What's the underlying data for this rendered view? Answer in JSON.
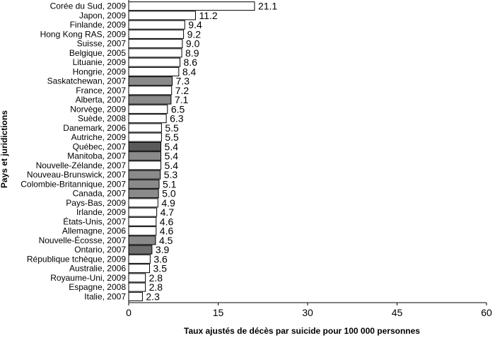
{
  "chart_data": {
    "type": "bar",
    "orientation": "horizontal",
    "xlabel": "Taux ajustés de décès par suicide pour 100 000 personnes",
    "ylabel": "Pays et juridictions",
    "xlim": [
      0,
      60
    ],
    "xticks": [
      "0",
      "15",
      "30",
      "45",
      "60"
    ],
    "grid": false,
    "legend": "none",
    "colors": {
      "country": "#ffffff",
      "province": "#8a8a8a",
      "quebec": "#5a5a5a",
      "ontario": "#6e6e6e",
      "outline": "#000000"
    },
    "categories": [
      "Corée du Sud, 2009",
      "Japon, 2009",
      "Finlande, 2009",
      "Hong Kong RAS, 2009",
      "Suisse, 2007",
      "Belgique, 2005",
      "Lituanie, 2009",
      "Hongrie, 2009",
      "Saskatchewan, 2007",
      "France, 2007",
      "Alberta, 2007",
      "Norvège, 2009",
      "Suède, 2008",
      "Danemark, 2006",
      "Autriche, 2009",
      "Québec, 2007",
      "Manitoba, 2007",
      "Nouvelle-Zélande, 2007",
      "Nouveau-Brunswick, 2007",
      "Colombie-Britannique, 2007",
      "Canada, 2007",
      "Pays-Bas, 2009",
      "Irlande, 2009",
      "États-Unis, 2007",
      "Allemagne, 2006",
      "Nouvelle-Écosse, 2007",
      "Ontario, 2007",
      "République tchèque, 2009",
      "Australie, 2006",
      "Royaume-Uni, 2009",
      "Espagne, 2008",
      "Italie, 2007"
    ],
    "values": [
      21.1,
      11.2,
      9.4,
      9.2,
      9.0,
      8.9,
      8.6,
      8.4,
      7.3,
      7.2,
      7.1,
      6.5,
      6.3,
      5.5,
      5.5,
      5.4,
      5.4,
      5.4,
      5.3,
      5.1,
      5.0,
      4.9,
      4.7,
      4.6,
      4.6,
      4.5,
      3.9,
      3.6,
      3.5,
      2.8,
      2.8,
      2.3
    ],
    "value_labels": [
      "21.1",
      "11.2",
      "9.4",
      "9.2",
      "9.0",
      "8.9",
      "8.6",
      "8.4",
      "7.3",
      "7.2",
      "7.1",
      "6.5",
      "6.3",
      "5.5",
      "5.5",
      "5.4",
      "5.4",
      "5.4",
      "5.3",
      "5.1",
      "5.0",
      "4.9",
      "4.7",
      "4.6",
      "4.6",
      "4.5",
      "3.9",
      "3.6",
      "3.5",
      "2.8",
      "2.8",
      "2.3"
    ],
    "bar_fill_keys": [
      "country",
      "country",
      "country",
      "country",
      "country",
      "country",
      "country",
      "country",
      "province",
      "country",
      "province",
      "country",
      "country",
      "country",
      "country",
      "quebec",
      "province",
      "country",
      "province",
      "province",
      "province",
      "country",
      "country",
      "country",
      "country",
      "province",
      "ontario",
      "country",
      "country",
      "country",
      "country",
      "country"
    ]
  }
}
